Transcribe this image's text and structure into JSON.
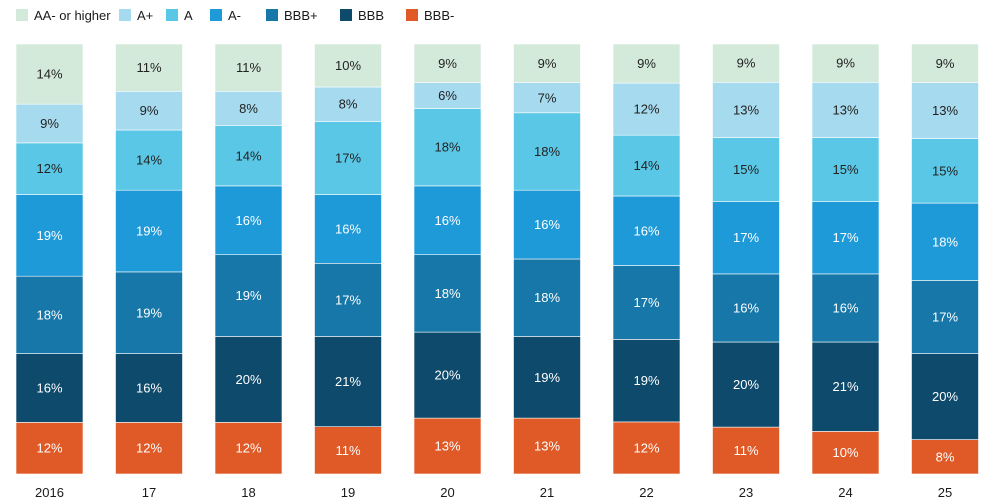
{
  "chart_data": {
    "type": "stacked-bar",
    "categories": [
      "2016",
      "17",
      "18",
      "19",
      "20",
      "21",
      "22",
      "23",
      "24",
      "25"
    ],
    "series": [
      {
        "name": "BBB-",
        "color": "#e05a27",
        "values": [
          12,
          12,
          12,
          11,
          13,
          13,
          12,
          11,
          10,
          8
        ]
      },
      {
        "name": "BBB",
        "color": "#0d4a6b",
        "values": [
          16,
          16,
          20,
          21,
          20,
          19,
          19,
          20,
          21,
          20
        ]
      },
      {
        "name": "BBB+",
        "color": "#1677a8",
        "values": [
          18,
          19,
          19,
          17,
          18,
          18,
          17,
          16,
          16,
          17
        ]
      },
      {
        "name": "A-",
        "color": "#1f9ad9",
        "values": [
          19,
          19,
          16,
          16,
          16,
          16,
          16,
          17,
          17,
          18
        ]
      },
      {
        "name": "A",
        "color": "#5bc7e6",
        "values": [
          12,
          14,
          14,
          17,
          18,
          18,
          14,
          15,
          15,
          15
        ]
      },
      {
        "name": "A+",
        "color": "#a6daee",
        "values": [
          9,
          9,
          8,
          8,
          6,
          7,
          12,
          13,
          13,
          13
        ]
      },
      {
        "name": "AA- or higher",
        "color": "#d3eadb",
        "values": [
          14,
          11,
          11,
          10,
          9,
          9,
          9,
          9,
          9,
          9
        ]
      }
    ],
    "legend_order": [
      "AA- or higher",
      "A+",
      "A",
      "A-",
      "BBB+",
      "BBB",
      "BBB-"
    ],
    "value_suffix": "%",
    "label_colors": {
      "light": "#222222",
      "dark": "#ffffff"
    },
    "legend_position": "top-left",
    "title": "",
    "xlabel": "",
    "ylabel": ""
  }
}
